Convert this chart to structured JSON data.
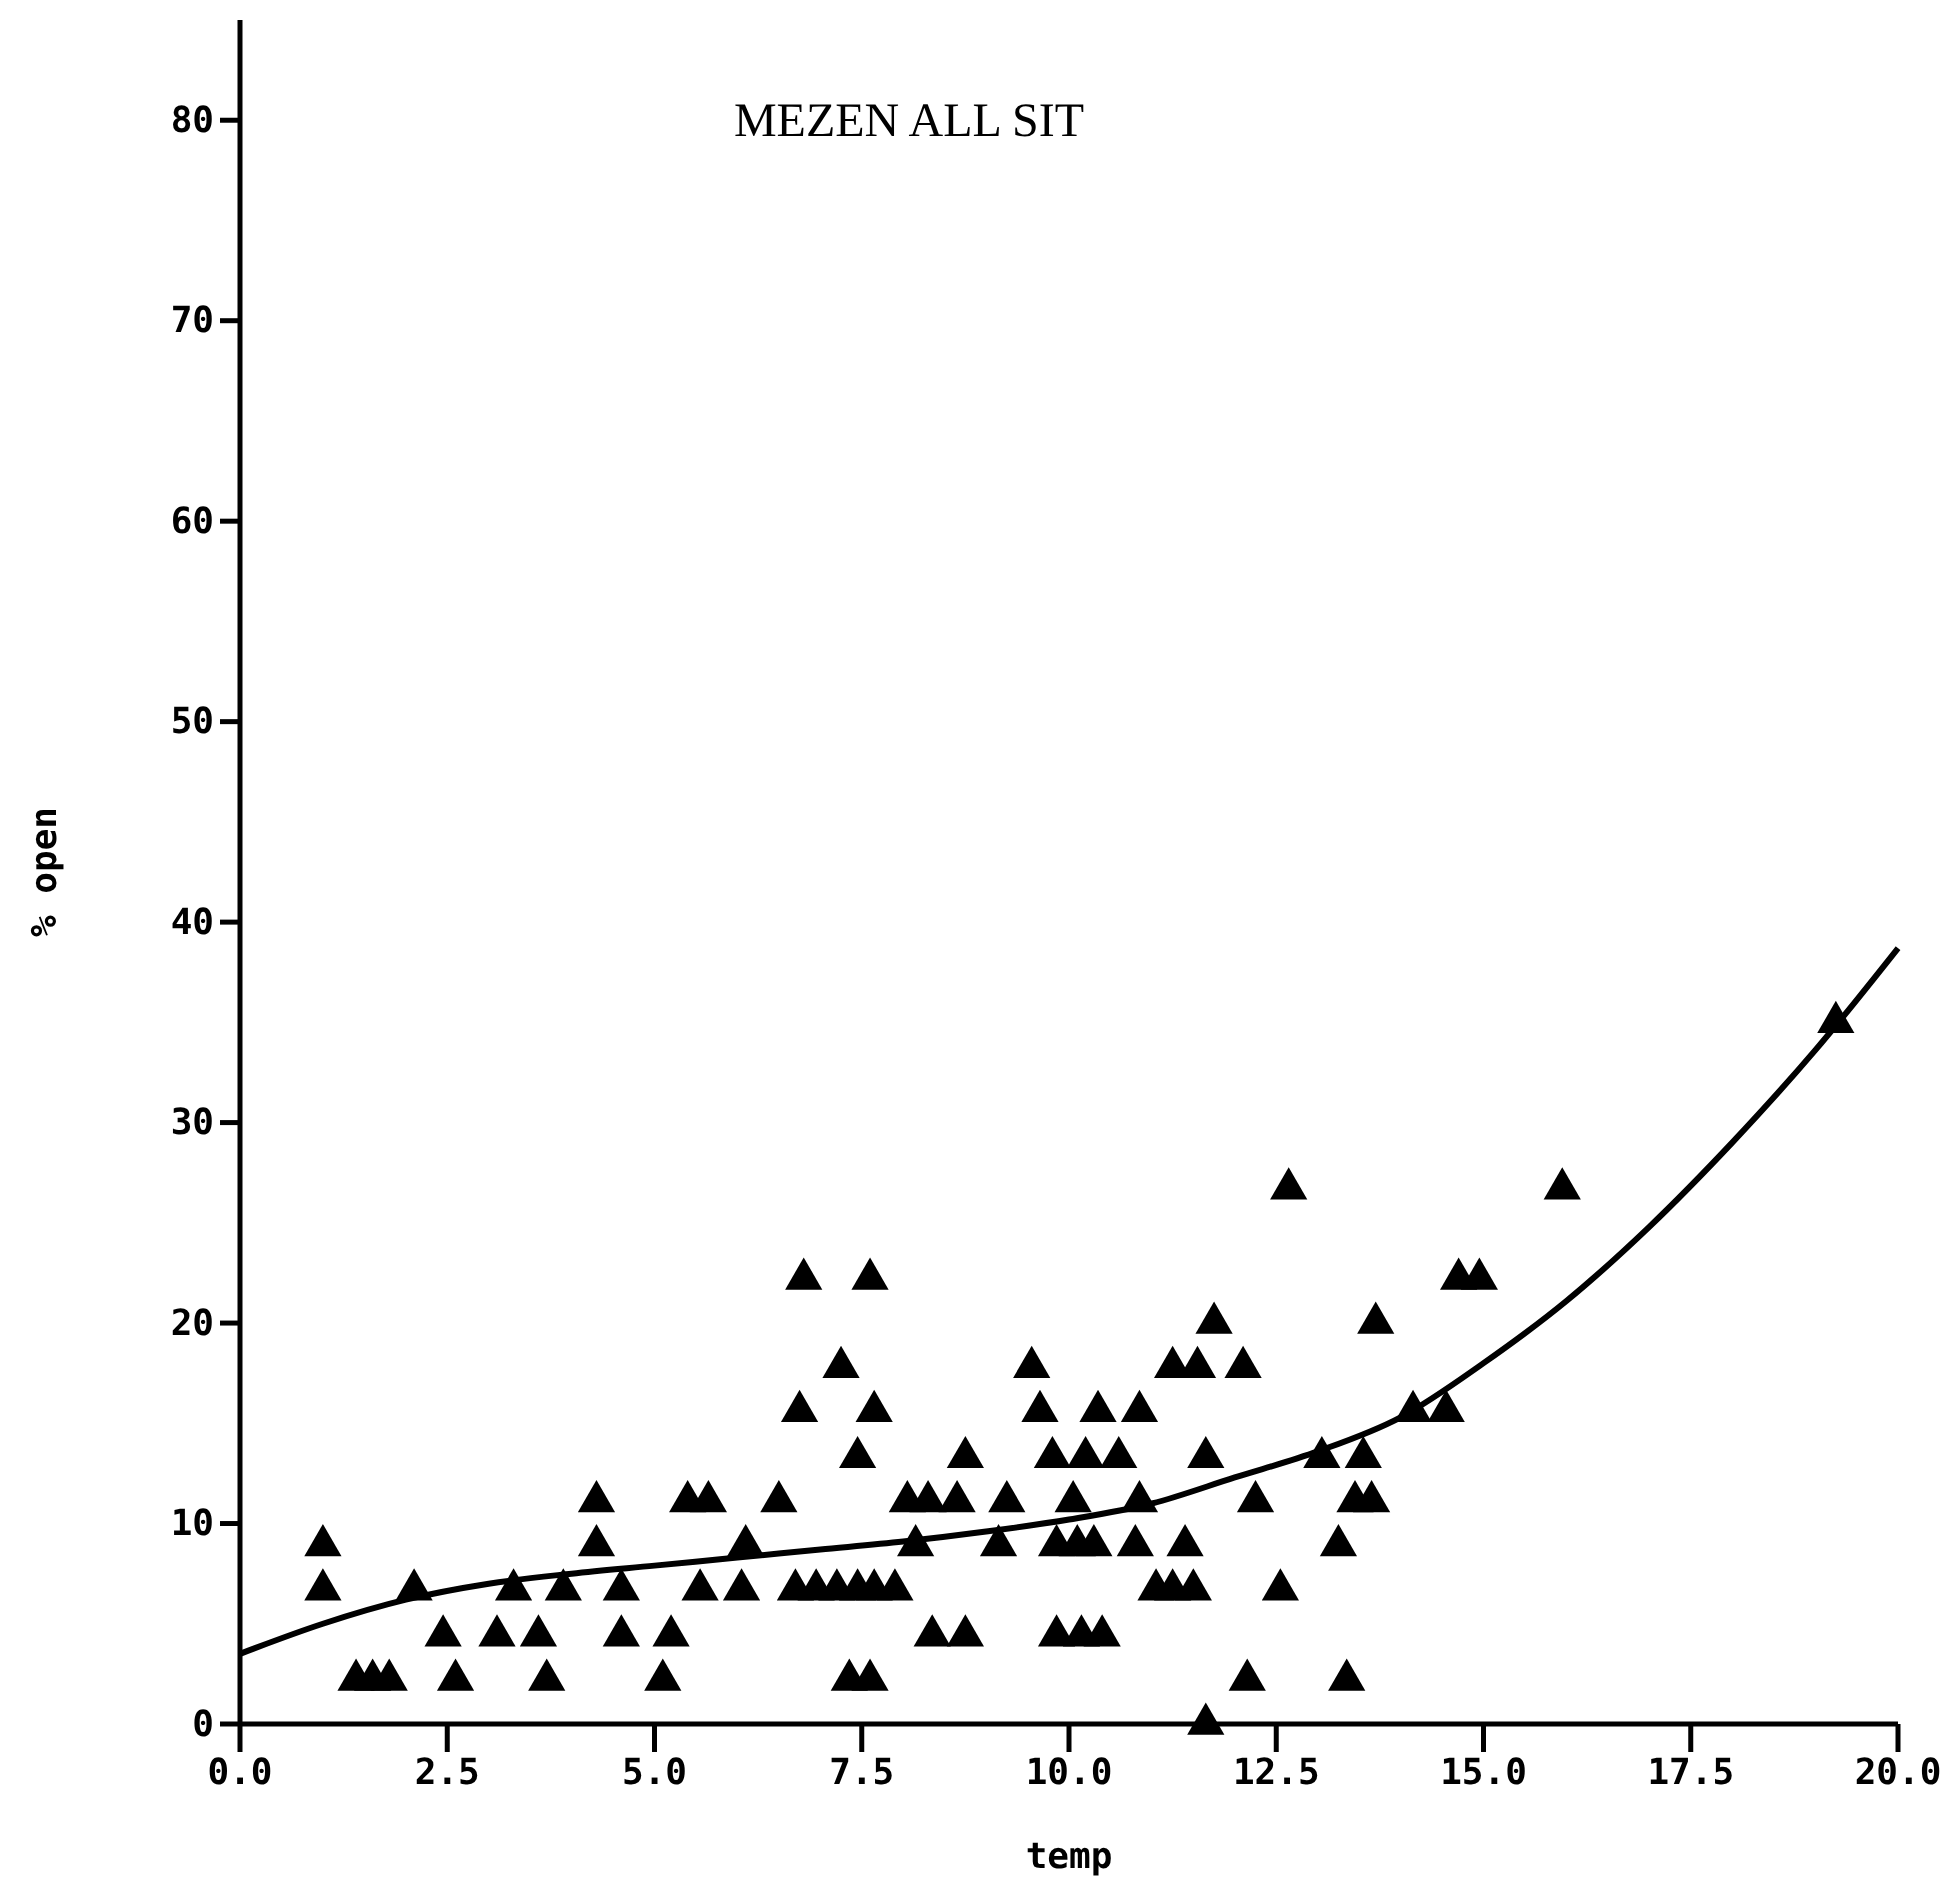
{
  "chart_data": {
    "type": "scatter",
    "title": "MEZEN ALL SIT",
    "xlabel": "temp",
    "ylabel": "% open",
    "xlim": [
      0,
      20
    ],
    "ylim": [
      0,
      85
    ],
    "xticks": [
      {
        "value": 0,
        "label": "0.0"
      },
      {
        "value": 2.5,
        "label": "2.5"
      },
      {
        "value": 5,
        "label": "5.0"
      },
      {
        "value": 7.5,
        "label": "7.5"
      },
      {
        "value": 10,
        "label": "10.0"
      },
      {
        "value": 12.5,
        "label": "12.5"
      },
      {
        "value": 15,
        "label": "15.0"
      },
      {
        "value": 17.5,
        "label": "17.5"
      },
      {
        "value": 20,
        "label": "20.0"
      }
    ],
    "yticks": [
      0,
      10,
      20,
      30,
      40,
      50,
      60,
      70,
      80
    ],
    "grid": false,
    "series": [
      {
        "color": "#000000",
        "marker": "triangle",
        "x": [
          1.0,
          1.0,
          1.4,
          1.6,
          1.8,
          2.1,
          2.45,
          2.6,
          3.1,
          3.3,
          3.6,
          3.7,
          3.9,
          4.3,
          4.3,
          4.6,
          4.6,
          5.1,
          5.2,
          5.4,
          5.65,
          5.55,
          6.1,
          6.05,
          6.5,
          6.75,
          6.8,
          6.7,
          6.95,
          7.2,
          7.45,
          7.65,
          7.9,
          7.6,
          7.25,
          7.65,
          7.45,
          8.75,
          8.05,
          8.3,
          8.65,
          9.25,
          10.05,
          10.85,
          12.25,
          8.15,
          9.15,
          9.85,
          10.1,
          10.3,
          10.8,
          11.4,
          11.05,
          11.25,
          11.5,
          8.35,
          8.75,
          9.85,
          10.15,
          10.4,
          7.35,
          7.6,
          12.15,
          11.65,
          9.55,
          11.25,
          11.55,
          12.1,
          11.75,
          9.65,
          10.35,
          10.85,
          9.8,
          10.2,
          10.6,
          11.65,
          12.65,
          15.95,
          14.7,
          14.95,
          13.7,
          14.15,
          14.55,
          13.05,
          13.55,
          13.45,
          13.65,
          13.25,
          12.55,
          13.35,
          19.25
        ],
        "values": [
          8.9,
          6.7,
          2.2,
          2.2,
          2.2,
          6.7,
          4.4,
          2.2,
          4.4,
          6.7,
          4.4,
          2.2,
          6.7,
          11.1,
          8.9,
          6.7,
          4.4,
          2.2,
          4.4,
          11.1,
          11.1,
          6.7,
          8.9,
          6.7,
          11.1,
          15.6,
          22.2,
          6.7,
          6.7,
          6.7,
          6.7,
          6.7,
          6.7,
          22.2,
          17.8,
          15.6,
          13.3,
          13.3,
          11.1,
          11.1,
          11.1,
          11.1,
          11.1,
          11.1,
          11.1,
          8.9,
          8.9,
          8.9,
          8.9,
          8.9,
          8.9,
          8.9,
          6.7,
          6.7,
          6.7,
          4.4,
          4.4,
          4.4,
          4.4,
          4.4,
          2.2,
          2.2,
          2.2,
          0,
          17.8,
          17.8,
          17.8,
          17.8,
          20,
          15.6,
          15.6,
          15.6,
          13.3,
          13.3,
          13.3,
          13.3,
          26.7,
          26.7,
          22.2,
          22.2,
          20,
          15.6,
          15.6,
          13.3,
          13.3,
          11.1,
          11.1,
          8.9,
          6.7,
          2.2,
          35
        ]
      },
      {
        "type": "line",
        "color": "#000000",
        "marker": "none",
        "line_style": "solid",
        "x": [
          0,
          1,
          2,
          3,
          4,
          5,
          6,
          7,
          8,
          9,
          10,
          11,
          12,
          13,
          14,
          15,
          16,
          17,
          18,
          19,
          20
        ],
        "values": [
          3.5,
          5,
          6.2,
          7,
          7.5,
          7.9,
          8.3,
          8.7,
          9.1,
          9.6,
          10.2,
          11,
          12.3,
          13.6,
          15.3,
          18,
          21.1,
          24.8,
          29,
          33.6,
          38.7
        ]
      }
    ]
  }
}
